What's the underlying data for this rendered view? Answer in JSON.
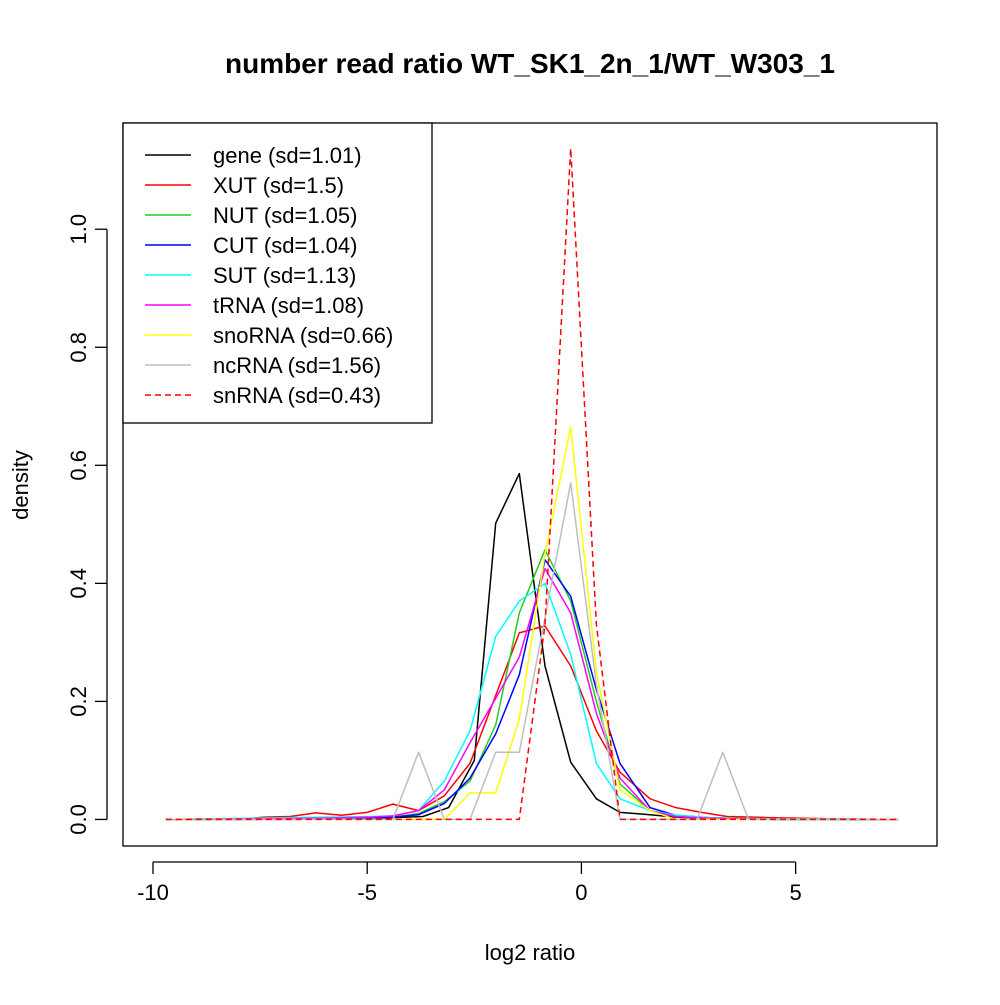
{
  "chart_data": {
    "type": "line",
    "title": "number read ratio WT_SK1_2n_1/WT_W303_1",
    "xlabel": "log2 ratio",
    "ylabel": "density",
    "xlim": [
      -10.7,
      8.3
    ],
    "ylim": [
      -0.045,
      1.18
    ],
    "xticks": [
      -10,
      -5,
      0,
      5
    ],
    "xtick_labels": [
      "-10",
      "-5",
      "0",
      "5"
    ],
    "yticks": [
      0.0,
      0.2,
      0.4,
      0.6,
      0.8,
      1.0
    ],
    "ytick_labels": [
      "0.0",
      "0.2",
      "0.4",
      "0.6",
      "0.8",
      "1.0"
    ],
    "grid": false,
    "legend_position": "top-left",
    "series": [
      {
        "name": "gene (sd=1.01)",
        "color": "#000000",
        "dash": false,
        "x": [
          -9.7,
          -6.7,
          -4.9,
          -3.7,
          -3.1,
          -2.5,
          -2.0,
          -1.45,
          -0.85,
          -0.25,
          0.35,
          0.9,
          1.6,
          2.2,
          3.0,
          4.5,
          6.0,
          7.4
        ],
        "y": [
          0.0,
          0.0,
          0.002,
          0.005,
          0.02,
          0.1,
          0.502,
          0.586,
          0.26,
          0.097,
          0.035,
          0.012,
          0.008,
          0.004,
          0.002,
          0.001,
          0.0,
          0.0
        ]
      },
      {
        "name": "XUT (sd=1.5)",
        "color": "#ff0000",
        "dash": false,
        "x": [
          -9.7,
          -8.0,
          -7.4,
          -6.8,
          -6.2,
          -5.6,
          -5.0,
          -4.4,
          -3.8,
          -3.2,
          -2.6,
          -2.0,
          -1.45,
          -0.85,
          -0.25,
          0.35,
          0.9,
          1.6,
          2.2,
          2.8,
          3.4,
          4.5,
          6.0,
          7.4
        ],
        "y": [
          0.0,
          0.0,
          0.004,
          0.005,
          0.011,
          0.007,
          0.012,
          0.026,
          0.015,
          0.04,
          0.095,
          0.21,
          0.316,
          0.328,
          0.26,
          0.15,
          0.08,
          0.035,
          0.02,
          0.012,
          0.005,
          0.003,
          0.001,
          0.0
        ]
      },
      {
        "name": "NUT (sd=1.05)",
        "color": "#22cc22",
        "dash": false,
        "x": [
          -9.7,
          -6.0,
          -4.9,
          -4.4,
          -3.8,
          -3.2,
          -2.6,
          -2.0,
          -1.45,
          -0.85,
          -0.25,
          0.35,
          0.9,
          1.6,
          2.2,
          3.0,
          4.5,
          7.4
        ],
        "y": [
          0.0,
          0.002,
          0.003,
          0.004,
          0.01,
          0.03,
          0.065,
          0.16,
          0.35,
          0.457,
          0.37,
          0.2,
          0.06,
          0.015,
          0.005,
          0.002,
          0.0,
          0.0
        ]
      },
      {
        "name": "CUT (sd=1.04)",
        "color": "#0000ff",
        "dash": false,
        "x": [
          -9.7,
          -6.0,
          -4.9,
          -4.4,
          -3.8,
          -3.2,
          -2.6,
          -2.0,
          -1.45,
          -0.85,
          -0.25,
          0.35,
          0.9,
          1.6,
          2.2,
          3.0,
          4.5,
          7.4
        ],
        "y": [
          0.0,
          0.002,
          0.003,
          0.004,
          0.008,
          0.027,
          0.07,
          0.145,
          0.245,
          0.44,
          0.378,
          0.22,
          0.095,
          0.02,
          0.007,
          0.003,
          0.0,
          0.0
        ]
      },
      {
        "name": "SUT (sd=1.13)",
        "color": "#00ffff",
        "dash": false,
        "x": [
          -9.7,
          -6.0,
          -4.9,
          -4.4,
          -3.8,
          -3.2,
          -2.6,
          -2.0,
          -1.45,
          -0.85,
          -0.25,
          0.35,
          0.9,
          1.6,
          2.2,
          3.0,
          4.5,
          5.8,
          7.4
        ],
        "y": [
          0.0,
          0.004,
          0.005,
          0.006,
          0.015,
          0.065,
          0.15,
          0.31,
          0.37,
          0.4,
          0.28,
          0.095,
          0.035,
          0.015,
          0.007,
          0.003,
          0.001,
          0.001,
          0.0
        ]
      },
      {
        "name": "tRNA (sd=1.08)",
        "color": "#ff00ff",
        "dash": false,
        "x": [
          -9.7,
          -6.0,
          -4.9,
          -4.4,
          -3.8,
          -3.2,
          -2.6,
          -2.0,
          -1.45,
          -0.85,
          -0.25,
          0.35,
          0.9,
          1.6,
          2.2,
          3.0,
          4.5,
          7.4
        ],
        "y": [
          0.0,
          0.002,
          0.004,
          0.006,
          0.015,
          0.05,
          0.13,
          0.205,
          0.275,
          0.425,
          0.35,
          0.18,
          0.07,
          0.015,
          0.005,
          0.002,
          0.0,
          0.0
        ]
      },
      {
        "name": "snoRNA (sd=0.66)",
        "color": "#ffff00",
        "dash": false,
        "x": [
          -9.7,
          -3.2,
          -2.6,
          -2.0,
          -1.45,
          -0.85,
          -0.25,
          0.35,
          0.9,
          1.6,
          2.2,
          7.4
        ],
        "y": [
          0.0,
          0.0,
          0.045,
          0.045,
          0.17,
          0.45,
          0.665,
          0.25,
          0.05,
          0.015,
          0.0,
          0.0
        ]
      },
      {
        "name": "ncRNA (sd=1.56)",
        "color": "#bebebe",
        "dash": false,
        "x": [
          -9.7,
          -4.4,
          -3.8,
          -3.2,
          -2.6,
          -2.0,
          -1.45,
          -0.85,
          -0.25,
          0.35,
          0.9,
          1.6,
          2.7,
          3.3,
          3.9,
          7.4
        ],
        "y": [
          0.0,
          0.0,
          0.114,
          0.0,
          0.0,
          0.114,
          0.114,
          0.342,
          0.57,
          0.228,
          0.0,
          0.0,
          0.0,
          0.114,
          0.0,
          0.0
        ]
      },
      {
        "name": "snRNA (sd=0.43)",
        "color": "#ff0000",
        "dash": true,
        "x": [
          -9.7,
          -1.45,
          -0.85,
          -0.25,
          0.35,
          0.9,
          7.4
        ],
        "y": [
          0.0,
          0.0,
          0.33,
          1.137,
          0.33,
          0.0,
          0.0
        ]
      }
    ]
  }
}
